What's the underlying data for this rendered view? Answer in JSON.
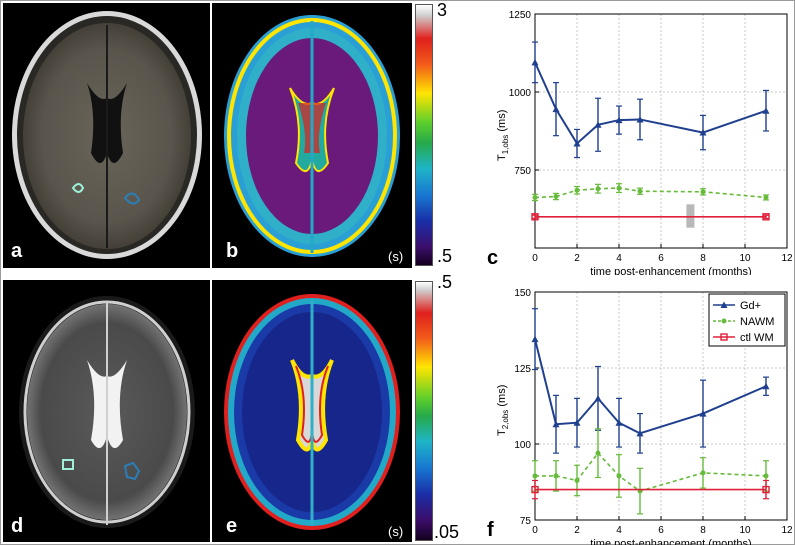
{
  "panels": {
    "a": "a",
    "b": "b",
    "c": "c",
    "d": "d",
    "e": "e",
    "f": "f"
  },
  "units_label": "(s)",
  "colorbar_top": {
    "max": "3",
    "min": ".5"
  },
  "colorbar_bottom": {
    "max": ".5",
    "min": ".05"
  },
  "colors": {
    "gd": "#1f3f8f",
    "nawm": "#66bb3a",
    "ctl": "#e0203a"
  },
  "chart_data": [
    {
      "type": "line",
      "ylabel_main": "T",
      "ylabel_sub": "1,obs",
      "ylabel_unit": "(ms)",
      "xlabel": "time post-enhancement (months)",
      "xlim": [
        0,
        12
      ],
      "ylim": [
        500,
        1250
      ],
      "xticks": [
        "0",
        "2",
        "4",
        "6",
        "8",
        "10",
        "12"
      ],
      "yticks": [
        "750",
        "1000",
        "1250"
      ],
      "grid": true,
      "series": [
        {
          "x": [
            0,
            1,
            2,
            3,
            4,
            5,
            8,
            11
          ],
          "y": [
            1095,
            945,
            835,
            895,
            910,
            912,
            870,
            940
          ],
          "err": [
            65,
            85,
            45,
            85,
            45,
            65,
            55,
            65
          ]
        },
        {
          "x": [
            0,
            1,
            2,
            3,
            4,
            5,
            8,
            11
          ],
          "y": [
            662,
            665,
            685,
            690,
            692,
            682,
            680,
            662
          ],
          "err": [
            10,
            10,
            12,
            14,
            14,
            10,
            10,
            8
          ]
        },
        {
          "x": [
            0,
            11
          ],
          "y": [
            600,
            600
          ],
          "err": [
            5,
            5
          ]
        }
      ],
      "highlight_bar": {
        "x": 7.4,
        "ylow": 565,
        "yhigh": 640
      }
    },
    {
      "type": "line",
      "ylabel_main": "T",
      "ylabel_sub": "2,obs",
      "ylabel_unit": "(ms)",
      "xlabel": "time post-enhancement (months)",
      "xlim": [
        0,
        12
      ],
      "ylim": [
        75,
        150
      ],
      "xticks": [
        "0",
        "2",
        "4",
        "6",
        "8",
        "10",
        "12"
      ],
      "yticks": [
        "75",
        "100",
        "125",
        "150"
      ],
      "grid": true,
      "legend_position": "top-right",
      "series": [
        {
          "name": "Gd+",
          "x": [
            0,
            1,
            2,
            3,
            4,
            5,
            8,
            11
          ],
          "y": [
            134.5,
            106.5,
            107,
            115,
            107,
            103.5,
            110,
            119
          ],
          "err": [
            10,
            9.5,
            8,
            10.5,
            8,
            6.5,
            11,
            3
          ]
        },
        {
          "name": "NAWM",
          "x": [
            0,
            1,
            2,
            3,
            4,
            5,
            8,
            11
          ],
          "y": [
            89.5,
            89.5,
            88,
            97,
            89.5,
            84.5,
            90.5,
            89.5
          ],
          "err": [
            5,
            5,
            5,
            8,
            7,
            7.5,
            5,
            5
          ]
        },
        {
          "name": "ctl WM",
          "x": [
            0,
            11
          ],
          "y": [
            85,
            85
          ],
          "err": [
            3,
            3
          ]
        }
      ]
    }
  ]
}
